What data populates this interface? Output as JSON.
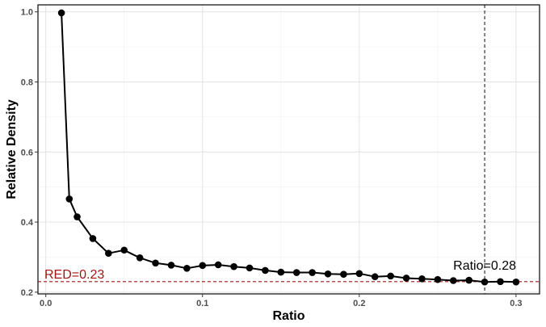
{
  "chart_data": {
    "type": "line",
    "title": "",
    "xlabel": "Ratio",
    "ylabel": "Relative Density",
    "xlim": [
      -0.005,
      0.315
    ],
    "ylim": [
      0.195,
      1.02
    ],
    "x_ticks": [
      0.0,
      0.1,
      0.2,
      0.3
    ],
    "x_tick_labels": [
      "0.0",
      "0.1",
      "0.2",
      "0.3"
    ],
    "y_ticks": [
      0.2,
      0.4,
      0.6,
      0.8,
      1.0
    ],
    "y_tick_labels": [
      "0.2",
      "0.4",
      "0.6",
      "0.8",
      "1.0"
    ],
    "grid": true,
    "series": [
      {
        "color": "#000000",
        "x": [
          0.01,
          0.015,
          0.02,
          0.03,
          0.04,
          0.05,
          0.06,
          0.07,
          0.08,
          0.09,
          0.1,
          0.11,
          0.12,
          0.13,
          0.14,
          0.15,
          0.16,
          0.17,
          0.18,
          0.19,
          0.2,
          0.21,
          0.22,
          0.23,
          0.24,
          0.25,
          0.26,
          0.27,
          0.28,
          0.29,
          0.3
        ],
        "y": [
          0.997,
          0.466,
          0.415,
          0.353,
          0.311,
          0.32,
          0.298,
          0.283,
          0.277,
          0.268,
          0.276,
          0.278,
          0.273,
          0.269,
          0.262,
          0.257,
          0.256,
          0.256,
          0.252,
          0.251,
          0.253,
          0.244,
          0.246,
          0.24,
          0.238,
          0.236,
          0.233,
          0.234,
          0.229,
          0.23,
          0.229
        ]
      }
    ],
    "hline": {
      "y": 0.23,
      "label": "RED=0.23",
      "color": "#a31515",
      "style": "dashed"
    },
    "vline": {
      "x": 0.28,
      "label": "Ratio=0.28",
      "color": "#333333",
      "style": "dashed"
    }
  }
}
